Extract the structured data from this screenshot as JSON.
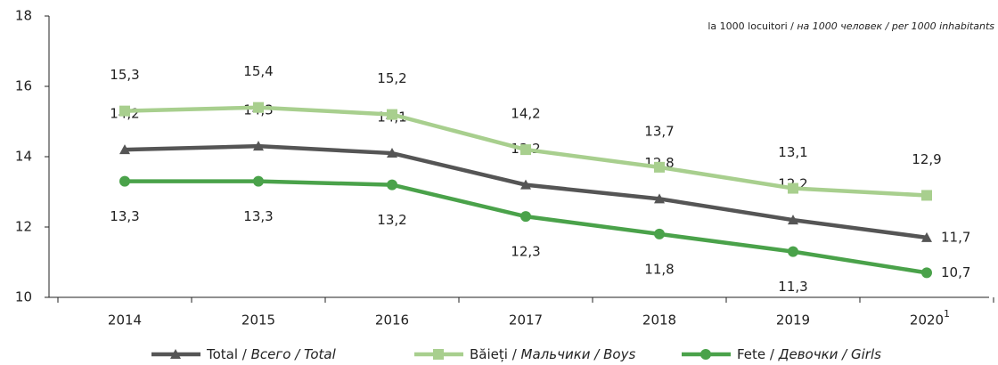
{
  "chart_data": {
    "type": "line",
    "subtitle": "la 1000 locuitori / на 1000 человек / per 1000 inhabitants",
    "categories": [
      "2014",
      "2015",
      "2016",
      "2017",
      "2018",
      "2019",
      "2020"
    ],
    "category_superscripts": [
      null,
      null,
      null,
      null,
      null,
      null,
      "1"
    ],
    "ylim": [
      10,
      18
    ],
    "yticks": [
      10,
      12,
      14,
      16,
      18
    ],
    "grid": false,
    "series": [
      {
        "name": "Total / Всего / Total",
        "color": "#555555",
        "marker": "triangle",
        "label_position": "above",
        "values": [
          14.2,
          14.3,
          14.1,
          13.2,
          12.8,
          12.2,
          11.7
        ],
        "value_labels": [
          "14,2",
          "14,3",
          "14,1",
          "13,2",
          "12,8",
          "12,2",
          "11,7"
        ]
      },
      {
        "name": "Băieți / Мальчики / Boys",
        "color": "#a8cf8e",
        "marker": "square",
        "label_position": "above",
        "values": [
          15.3,
          15.4,
          15.2,
          14.2,
          13.7,
          13.1,
          12.9
        ],
        "value_labels": [
          "15,3",
          "15,4",
          "15,2",
          "14,2",
          "13,7",
          "13,1",
          "12,9"
        ]
      },
      {
        "name": "Fete / Девочки / Girls",
        "color": "#4aa24a",
        "marker": "circle",
        "label_position": "below",
        "values": [
          13.3,
          13.3,
          13.2,
          12.3,
          11.8,
          11.3,
          10.7
        ],
        "value_labels": [
          "13,3",
          "13,3",
          "13,2",
          "12,3",
          "11,8",
          "11,3",
          "10,7"
        ]
      }
    ]
  }
}
